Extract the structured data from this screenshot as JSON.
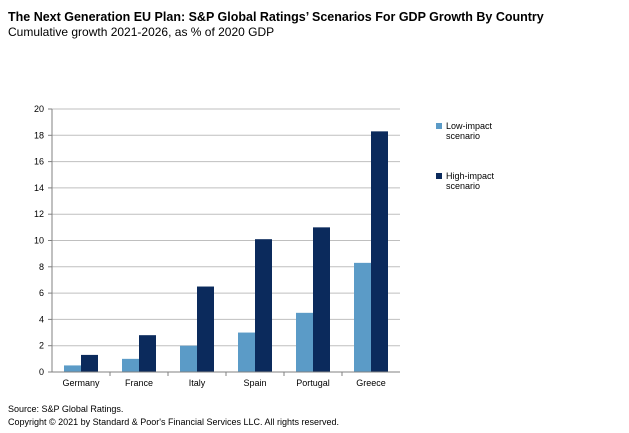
{
  "title": "The Next Generation EU Plan: S&P Global Ratings’ Scenarios For GDP Growth By Country",
  "subtitle": "Cumulative growth 2021-2026, as % of 2020 GDP",
  "footer": {
    "source": "Source: S&P Global Ratings.",
    "copyright": "Copyright © 2021 by Standard & Poor's Financial Services LLC. All rights reserved."
  },
  "colors": {
    "low": "#5b9bc7",
    "high": "#0b2a5c",
    "axis": "#808080",
    "grid": "#bfbfbf"
  },
  "chart_data": {
    "type": "bar",
    "title": "",
    "xlabel": "",
    "ylabel": "",
    "categories": [
      "Germany",
      "France",
      "Italy",
      "Spain",
      "Portugal",
      "Greece"
    ],
    "series": [
      {
        "name": "Low-impact scenario",
        "values": [
          0.5,
          1.0,
          2.0,
          3.0,
          4.5,
          8.3
        ]
      },
      {
        "name": "High-impact scenario",
        "values": [
          1.3,
          2.8,
          6.5,
          10.1,
          11.0,
          18.3
        ]
      }
    ],
    "ylim": [
      0,
      20
    ],
    "yticks": [
      "0",
      "2",
      "4",
      "6",
      "8",
      "10",
      "12",
      "14",
      "16",
      "18",
      "20"
    ],
    "grid": true,
    "legend": "right"
  }
}
